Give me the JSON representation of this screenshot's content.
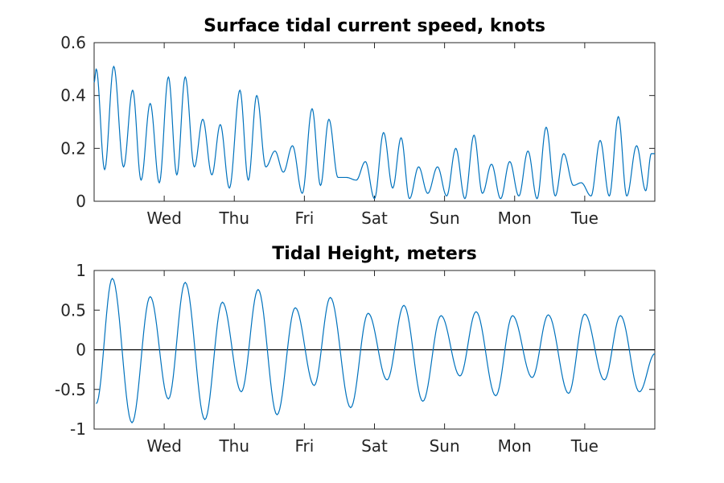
{
  "chart_data": [
    {
      "type": "line",
      "title": "Surface tidal current speed, knots",
      "xlabel": "",
      "ylabel": "",
      "x_tick_labels": [
        "Wed",
        "Thu",
        "Fri",
        "Sat",
        "Sun",
        "Mon",
        "Tue"
      ],
      "y_tick_labels": [
        "0",
        "0.2",
        "0.4",
        "0.6"
      ],
      "ylim": [
        0,
        0.6
      ],
      "xlim_days": [
        0,
        8
      ],
      "x_ticks_days": [
        1,
        2,
        3,
        4,
        5,
        6,
        7
      ],
      "y_ticks": [
        0,
        0.2,
        0.4,
        0.6
      ],
      "reference_line": null,
      "series_color": "#0072bd",
      "peaks": [
        {
          "x": 0.03,
          "y": 0.5
        },
        {
          "x": 0.28,
          "y": 0.51
        },
        {
          "x": 0.55,
          "y": 0.42
        },
        {
          "x": 0.8,
          "y": 0.37
        },
        {
          "x": 1.06,
          "y": 0.47
        },
        {
          "x": 1.3,
          "y": 0.47
        },
        {
          "x": 1.55,
          "y": 0.31
        },
        {
          "x": 1.8,
          "y": 0.29
        },
        {
          "x": 2.08,
          "y": 0.42
        },
        {
          "x": 2.32,
          "y": 0.4
        },
        {
          "x": 2.58,
          "y": 0.19
        },
        {
          "x": 2.83,
          "y": 0.21
        },
        {
          "x": 3.11,
          "y": 0.35
        },
        {
          "x": 3.35,
          "y": 0.31
        },
        {
          "x": 3.6,
          "y": 0.09
        },
        {
          "x": 3.87,
          "y": 0.15
        },
        {
          "x": 4.13,
          "y": 0.26
        },
        {
          "x": 4.38,
          "y": 0.24
        },
        {
          "x": 4.63,
          "y": 0.13
        },
        {
          "x": 4.9,
          "y": 0.13
        },
        {
          "x": 5.16,
          "y": 0.2
        },
        {
          "x": 5.42,
          "y": 0.25
        },
        {
          "x": 5.67,
          "y": 0.14
        },
        {
          "x": 5.93,
          "y": 0.15
        },
        {
          "x": 6.19,
          "y": 0.19
        },
        {
          "x": 6.45,
          "y": 0.28
        },
        {
          "x": 6.7,
          "y": 0.18
        },
        {
          "x": 6.95,
          "y": 0.07
        },
        {
          "x": 7.22,
          "y": 0.23
        },
        {
          "x": 7.48,
          "y": 0.32
        },
        {
          "x": 7.74,
          "y": 0.21
        },
        {
          "x": 7.95,
          "y": 0.18
        }
      ],
      "troughs": [
        {
          "x": 0.0,
          "y": 0.45
        },
        {
          "x": 0.15,
          "y": 0.12
        },
        {
          "x": 0.42,
          "y": 0.13
        },
        {
          "x": 0.67,
          "y": 0.08
        },
        {
          "x": 0.93,
          "y": 0.07
        },
        {
          "x": 1.18,
          "y": 0.1
        },
        {
          "x": 1.43,
          "y": 0.13
        },
        {
          "x": 1.68,
          "y": 0.1
        },
        {
          "x": 1.93,
          "y": 0.05
        },
        {
          "x": 2.2,
          "y": 0.08
        },
        {
          "x": 2.45,
          "y": 0.13
        },
        {
          "x": 2.7,
          "y": 0.11
        },
        {
          "x": 2.97,
          "y": 0.03
        },
        {
          "x": 3.23,
          "y": 0.06
        },
        {
          "x": 3.48,
          "y": 0.09
        },
        {
          "x": 3.74,
          "y": 0.08
        },
        {
          "x": 4.0,
          "y": 0.01
        },
        {
          "x": 4.26,
          "y": 0.05
        },
        {
          "x": 4.5,
          "y": 0.01
        },
        {
          "x": 4.76,
          "y": 0.03
        },
        {
          "x": 5.03,
          "y": 0.02
        },
        {
          "x": 5.29,
          "y": 0.01
        },
        {
          "x": 5.54,
          "y": 0.03
        },
        {
          "x": 5.8,
          "y": 0.01
        },
        {
          "x": 6.06,
          "y": 0.02
        },
        {
          "x": 6.32,
          "y": 0.01
        },
        {
          "x": 6.58,
          "y": 0.02
        },
        {
          "x": 6.84,
          "y": 0.06
        },
        {
          "x": 7.09,
          "y": 0.02
        },
        {
          "x": 7.35,
          "y": 0.02
        },
        {
          "x": 7.6,
          "y": 0.02
        },
        {
          "x": 7.87,
          "y": 0.04
        },
        {
          "x": 8.0,
          "y": 0.18
        }
      ]
    },
    {
      "type": "line",
      "title": "Tidal Height, meters",
      "xlabel": "",
      "ylabel": "",
      "x_tick_labels": [
        "Wed",
        "Thu",
        "Fri",
        "Sat",
        "Sun",
        "Mon",
        "Tue"
      ],
      "y_tick_labels": [
        "-1",
        "-0.5",
        "0",
        "0.5",
        "1"
      ],
      "ylim": [
        -1,
        1
      ],
      "xlim_days": [
        0,
        8
      ],
      "x_ticks_days": [
        1,
        2,
        3,
        4,
        5,
        6,
        7
      ],
      "y_ticks": [
        -1,
        -0.5,
        0,
        0.5,
        1
      ],
      "reference_line": 0,
      "series_color": "#0072bd",
      "peaks": [
        {
          "x": 0.26,
          "y": 0.9
        },
        {
          "x": 0.8,
          "y": 0.67
        },
        {
          "x": 1.3,
          "y": 0.85
        },
        {
          "x": 1.83,
          "y": 0.6
        },
        {
          "x": 2.34,
          "y": 0.76
        },
        {
          "x": 2.87,
          "y": 0.53
        },
        {
          "x": 3.37,
          "y": 0.66
        },
        {
          "x": 3.91,
          "y": 0.46
        },
        {
          "x": 4.42,
          "y": 0.56
        },
        {
          "x": 4.95,
          "y": 0.43
        },
        {
          "x": 5.45,
          "y": 0.48
        },
        {
          "x": 5.97,
          "y": 0.43
        },
        {
          "x": 6.48,
          "y": 0.44
        },
        {
          "x": 7.0,
          "y": 0.45
        },
        {
          "x": 7.51,
          "y": 0.43
        }
      ],
      "troughs": [
        {
          "x": 0.03,
          "y": -0.68
        },
        {
          "x": 0.54,
          "y": -0.92
        },
        {
          "x": 1.06,
          "y": -0.62
        },
        {
          "x": 1.58,
          "y": -0.88
        },
        {
          "x": 2.1,
          "y": -0.53
        },
        {
          "x": 2.61,
          "y": -0.82
        },
        {
          "x": 3.14,
          "y": -0.45
        },
        {
          "x": 3.66,
          "y": -0.73
        },
        {
          "x": 4.18,
          "y": -0.38
        },
        {
          "x": 4.69,
          "y": -0.65
        },
        {
          "x": 5.22,
          "y": -0.33
        },
        {
          "x": 5.73,
          "y": -0.58
        },
        {
          "x": 6.25,
          "y": -0.35
        },
        {
          "x": 6.77,
          "y": -0.55
        },
        {
          "x": 7.28,
          "y": -0.38
        },
        {
          "x": 7.78,
          "y": -0.53
        }
      ],
      "end_point": {
        "x": 8.0,
        "y": -0.05
      }
    }
  ]
}
